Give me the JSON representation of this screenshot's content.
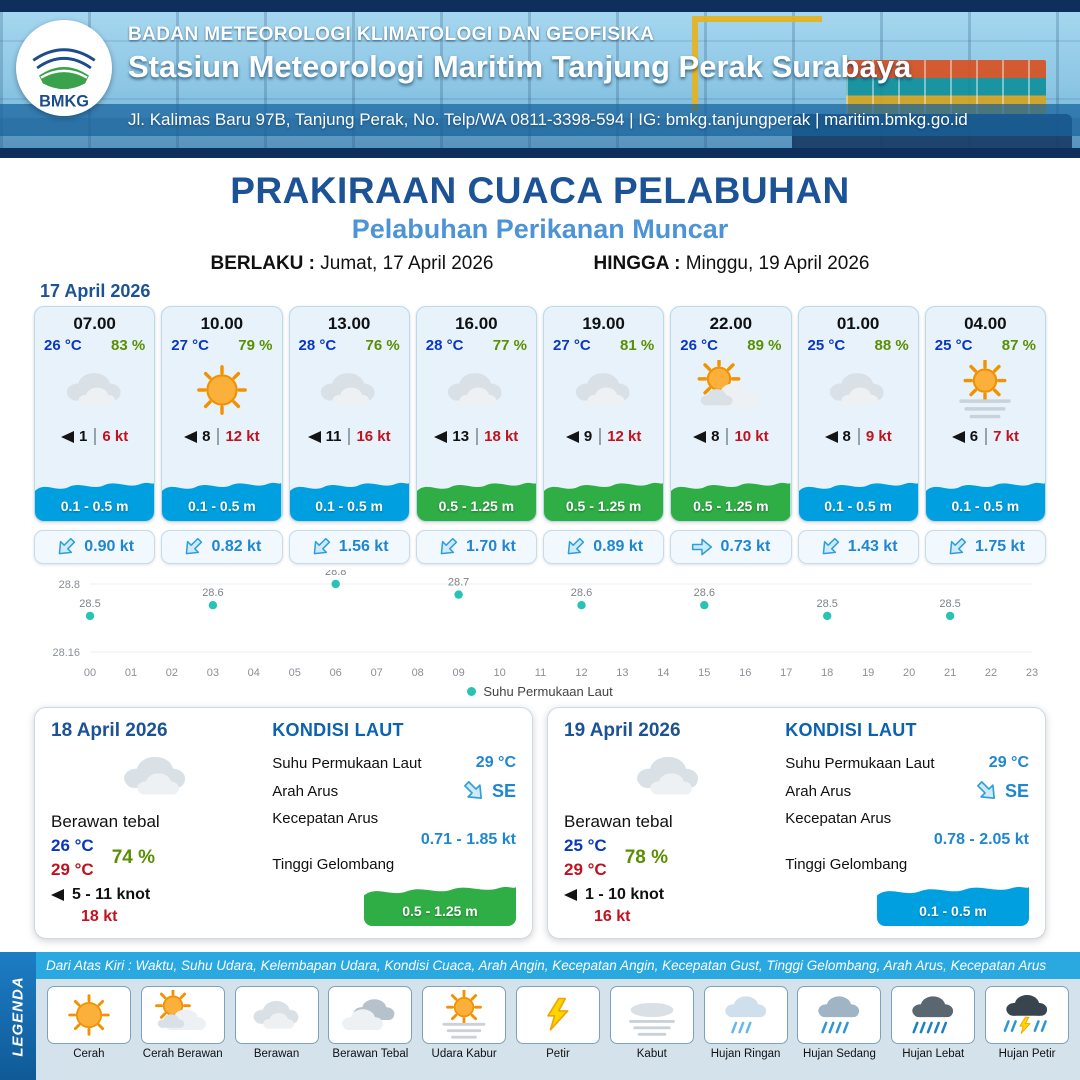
{
  "colors": {
    "navy": "#1c5296",
    "sky_blue": "#2aa9e0",
    "subtitle_blue": "#4d94d6",
    "temp_blue": "#0a36c4",
    "rh_green": "#5a8f00",
    "gust_red": "#c1121f",
    "wave_blue": "#00a0e0",
    "wave_green": "#2fae45",
    "sst_dot": "#28c3b2"
  },
  "header": {
    "logo_text": "BMKG",
    "org": "BADAN METEOROLOGI KLIMATOLOGI DAN GEOFISIKA",
    "station": "Stasiun Meteorologi Maritim Tanjung Perak Surabaya",
    "address": "Jl. Kalimas Baru 97B, Tanjung Perak, No. Telp/WA 0811-3398-594 | IG: bmkg.tanjungperak | maritim.bmkg.go.id"
  },
  "title": {
    "main": "PRAKIRAAN CUACA PELABUHAN",
    "sub": "Pelabuhan Perikanan Muncar",
    "valid_label": "BERLAKU :",
    "valid_value": "Jumat, 17 April 2026",
    "until_label": "HINGGA :",
    "until_value": "Minggu, 19 April 2026"
  },
  "forecast": {
    "date": "17 April 2026",
    "cards": [
      {
        "time": "07.00",
        "temp": "26 °C",
        "rh": "83 %",
        "icon": "berawan",
        "wind": "1",
        "gust": "6 kt",
        "wave": "0.1 - 0.5 m",
        "wave_color": "blue",
        "current": "0.90 kt",
        "current_dir": "SW"
      },
      {
        "time": "10.00",
        "temp": "27 °C",
        "rh": "79 %",
        "icon": "cerah",
        "wind": "8",
        "gust": "12 kt",
        "wave": "0.1 - 0.5 m",
        "wave_color": "blue",
        "current": "0.82 kt",
        "current_dir": "SW"
      },
      {
        "time": "13.00",
        "temp": "28 °C",
        "rh": "76 %",
        "icon": "berawan",
        "wind": "11",
        "gust": "16 kt",
        "wave": "0.1 - 0.5 m",
        "wave_color": "blue",
        "current": "1.56 kt",
        "current_dir": "SW"
      },
      {
        "time": "16.00",
        "temp": "28 °C",
        "rh": "77 %",
        "icon": "berawan",
        "wind": "13",
        "gust": "18 kt",
        "wave": "0.5 - 1.25 m",
        "wave_color": "green",
        "current": "1.70 kt",
        "current_dir": "SW"
      },
      {
        "time": "19.00",
        "temp": "27 °C",
        "rh": "81 %",
        "icon": "berawan",
        "wind": "9",
        "gust": "12 kt",
        "wave": "0.5 - 1.25 m",
        "wave_color": "green",
        "current": "0.89 kt",
        "current_dir": "SW"
      },
      {
        "time": "22.00",
        "temp": "26 °C",
        "rh": "89 %",
        "icon": "cerah-berawan",
        "wind": "8",
        "gust": "10 kt",
        "wave": "0.5 - 1.25 m",
        "wave_color": "green",
        "current": "0.73 kt",
        "current_dir": "E"
      },
      {
        "time": "01.00",
        "temp": "25 °C",
        "rh": "88 %",
        "icon": "berawan",
        "wind": "8",
        "gust": "9 kt",
        "wave": "0.1 - 0.5 m",
        "wave_color": "blue",
        "current": "1.43 kt",
        "current_dir": "SW"
      },
      {
        "time": "04.00",
        "temp": "25 °C",
        "rh": "87 %",
        "icon": "udara-kabur",
        "wind": "6",
        "gust": "7 kt",
        "wave": "0.1 - 0.5 m",
        "wave_color": "blue",
        "current": "1.75 kt",
        "current_dir": "SW"
      }
    ]
  },
  "chart_data": {
    "type": "scatter",
    "title": "",
    "xlabel": "",
    "ylabel": "",
    "legend": "Suhu Permukaan Laut",
    "ylim": [
      28.16,
      28.8
    ],
    "ytick_labels": [
      "28.8",
      "28.16"
    ],
    "hours": [
      "00",
      "01",
      "02",
      "03",
      "04",
      "05",
      "06",
      "07",
      "08",
      "09",
      "10",
      "11",
      "12",
      "13",
      "14",
      "15",
      "16",
      "17",
      "18",
      "19",
      "20",
      "21",
      "22",
      "23"
    ],
    "points": [
      {
        "hour": 0,
        "value": 28.5
      },
      {
        "hour": 3,
        "value": 28.6
      },
      {
        "hour": 6,
        "value": 28.8
      },
      {
        "hour": 9,
        "value": 28.7
      },
      {
        "hour": 12,
        "value": 28.6
      },
      {
        "hour": 15,
        "value": 28.6
      },
      {
        "hour": 18,
        "value": 28.5
      },
      {
        "hour": 21,
        "value": 28.5
      }
    ]
  },
  "sea_labels": {
    "title": "KONDISI LAUT",
    "sst": "Suhu Permukaan Laut",
    "dir": "Arah Arus",
    "speed": "Kecepatan Arus",
    "wave": "Tinggi Gelombang"
  },
  "daily": [
    {
      "date": "18 April 2026",
      "icon": "berawan",
      "condition": "Berawan tebal",
      "temp_min": "26 °C",
      "temp_max": "29 °C",
      "rh": "74 %",
      "wind": "5  - 11 knot",
      "gust": "18 kt",
      "sst": "29 °C",
      "dir": "SE",
      "speed": "0.71  - 1.85 kt",
      "wave": "0.5 - 1.25 m",
      "wave_color": "green"
    },
    {
      "date": "19 April 2026",
      "icon": "berawan",
      "condition": "Berawan tebal",
      "temp_min": "25 °C",
      "temp_max": "29 °C",
      "rh": "78 %",
      "wind": "1  - 10 knot",
      "gust": "16 kt",
      "sst": "29 °C",
      "dir": "SE",
      "speed": "0.78 - 2.05 kt",
      "wave": "0.1 - 0.5 m",
      "wave_color": "blue"
    }
  ],
  "legend": {
    "strip": "LEGENDA",
    "note": "Dari Atas Kiri : Waktu, Suhu Udara, Kelembapan Udara, Kondisi Cuaca, Arah Angin, Kecepatan Angin, Kecepatan Gust, Tinggi Gelombang, Arah Arus, Kecepatan Arus",
    "items": [
      {
        "label": "Cerah",
        "icon": "cerah"
      },
      {
        "label": "Cerah Berawan",
        "icon": "cerah-berawan"
      },
      {
        "label": "Berawan",
        "icon": "berawan"
      },
      {
        "label": "Berawan Tebal",
        "icon": "berawan-tebal"
      },
      {
        "label": "Udara Kabur",
        "icon": "udara-kabur"
      },
      {
        "label": "Petir",
        "icon": "petir"
      },
      {
        "label": "Kabut",
        "icon": "kabut"
      },
      {
        "label": "Hujan Ringan",
        "icon": "hujan-ringan"
      },
      {
        "label": "Hujan Sedang",
        "icon": "hujan-sedang"
      },
      {
        "label": "Hujan Lebat",
        "icon": "hujan-lebat"
      },
      {
        "label": "Hujan Petir",
        "icon": "hujan-petir"
      }
    ]
  }
}
